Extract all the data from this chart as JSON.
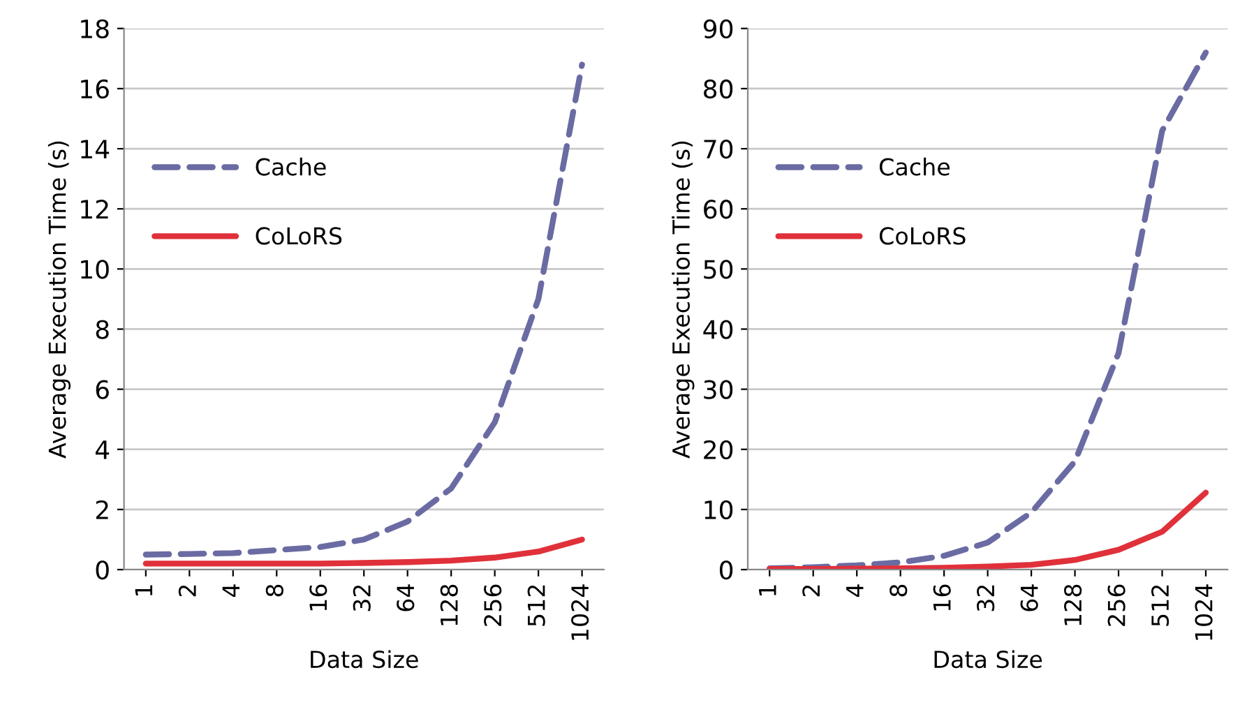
{
  "chart_data": [
    {
      "type": "line",
      "xlabel": "Data Size",
      "ylabel": "Average Execution Time (s)",
      "categories": [
        "1",
        "2",
        "4",
        "8",
        "16",
        "32",
        "64",
        "128",
        "256",
        "512",
        "1024"
      ],
      "ylim": [
        0,
        18
      ],
      "yticks": [
        0,
        2,
        4,
        6,
        8,
        10,
        12,
        14,
        16,
        18
      ],
      "grid": "y",
      "legend": "top left",
      "marker": "none",
      "series": [
        {
          "name": "Cache",
          "color": "#6b6ba3",
          "line_style": "dashed",
          "values": [
            0.5,
            0.52,
            0.55,
            0.65,
            0.75,
            1.0,
            1.6,
            2.7,
            4.9,
            9.0,
            16.8
          ]
        },
        {
          "name": "CoLoRS",
          "color": "#e0313a",
          "line_style": "solid",
          "values": [
            0.2,
            0.2,
            0.2,
            0.2,
            0.2,
            0.22,
            0.25,
            0.3,
            0.4,
            0.6,
            1.0
          ]
        }
      ]
    },
    {
      "type": "line",
      "xlabel": "Data Size",
      "ylabel": "Average Execution Time (s)",
      "categories": [
        "1",
        "2",
        "4",
        "8",
        "16",
        "32",
        "64",
        "128",
        "256",
        "512",
        "1024"
      ],
      "ylim": [
        0,
        90
      ],
      "yticks": [
        0,
        10,
        20,
        30,
        40,
        50,
        60,
        70,
        80,
        90
      ],
      "grid": "y",
      "legend": "top left",
      "marker": "none",
      "series": [
        {
          "name": "Cache",
          "color": "#6b6ba3",
          "line_style": "dashed",
          "values": [
            0.2,
            0.4,
            0.7,
            1.2,
            2.3,
            4.5,
            9.5,
            18,
            36,
            73,
            86
          ]
        },
        {
          "name": "CoLoRS",
          "color": "#e0313a",
          "line_style": "solid",
          "values": [
            0.1,
            0.1,
            0.15,
            0.2,
            0.3,
            0.5,
            0.8,
            1.6,
            3.3,
            6.3,
            12.8
          ]
        }
      ]
    }
  ]
}
